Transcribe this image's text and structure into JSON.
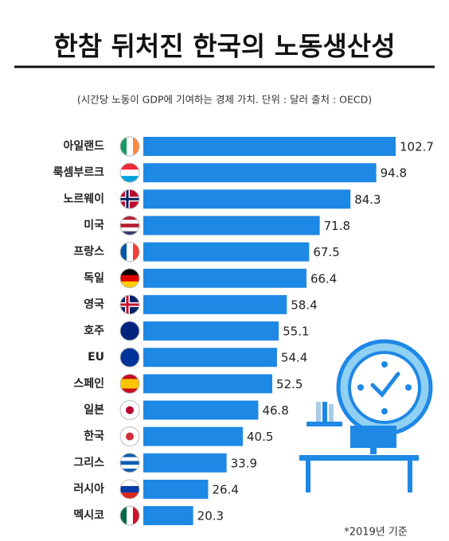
{
  "chart_data": {
    "type": "bar",
    "title": "한참 뒤처진 한국의 노동생산성",
    "subtitle": "(시간당 노동이 GDP에 기여하는 경제 가치. 단위 :  달러  출처 :  OECD)",
    "footnote": "*2019년 기준",
    "categories": [
      "아일랜드",
      "룩셈부르크",
      "노르웨이",
      "미국",
      "프랑스",
      "독일",
      "영국",
      "호주",
      "EU",
      "스페인",
      "일본",
      "한국",
      "그리스",
      "러시아",
      "멕시코"
    ],
    "values": [
      102.7,
      94.8,
      84.3,
      71.8,
      67.5,
      66.4,
      58.4,
      55.1,
      54.4,
      52.5,
      46.8,
      40.5,
      33.9,
      26.4,
      20.3
    ],
    "color": "#1e88e5"
  }
}
